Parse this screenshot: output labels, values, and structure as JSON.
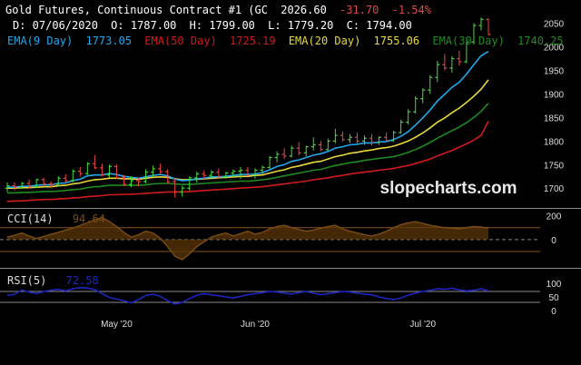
{
  "header": {
    "title": "Gold Futures, Continuous Contract #1 (GC",
    "last": "2026.60",
    "change": "-31.70",
    "change_pct": "-1.54%",
    "date_label": "D: 07/06/2020",
    "open_label": "O: 1787.00",
    "high_label": "H: 1799.00",
    "low_label": "L: 1779.20",
    "close_label": "C: 1794.00",
    "ema9_label": "EMA(9 Day)",
    "ema9_value": "1773.05",
    "ema50_label": "EMA(50 Day)",
    "ema50_value": "1725.19",
    "ema20_label": "EMA(20 Day)",
    "ema20_value": "1755.06",
    "ema30_label": "EMA(30 Day)",
    "ema30_value": "1740.25"
  },
  "watermark": "slopecharts.com",
  "cci_panel": {
    "label": "CCI(14)",
    "value": "94.64"
  },
  "rsi_panel": {
    "label": "RSI(5)",
    "value": "72.58"
  },
  "colors": {
    "background": "#000000",
    "title_text": "#ffffff",
    "change_text": "#e04848",
    "up_candle": "#44dd33",
    "down_candle": "#ee4444",
    "ema9": "#22a8ee",
    "ema20": "#e8d83c",
    "ema30": "#1f8a1f",
    "ema50": "#d11b1b",
    "cci_line": "#7a4c14",
    "cci_fill": "#5c3608",
    "rsi_line": "#1d28c8",
    "grid_line": "#8a8a8a",
    "axis_text": "#dddddd"
  },
  "chart_data": [
    {
      "type": "candlestick",
      "panel": "price",
      "title": "Gold Futures, Continuous Contract #1 (GC",
      "x_labels": [
        "May '20",
        "Jun '20",
        "Jul '20"
      ],
      "y_ticks": [
        1700,
        1750,
        1800,
        1850,
        1900,
        1950,
        2000,
        2050
      ],
      "ylim": [
        1660,
        2080
      ],
      "candles": [
        [
          1700,
          1712,
          1692,
          1705
        ],
        [
          1705,
          1712,
          1695,
          1702
        ],
        [
          1702,
          1713,
          1698,
          1710
        ],
        [
          1710,
          1718,
          1700,
          1703
        ],
        [
          1703,
          1720,
          1700,
          1718
        ],
        [
          1718,
          1722,
          1705,
          1709
        ],
        [
          1709,
          1715,
          1702,
          1708
        ],
        [
          1708,
          1725,
          1704,
          1721
        ],
        [
          1721,
          1730,
          1712,
          1716
        ],
        [
          1716,
          1740,
          1712,
          1736
        ],
        [
          1736,
          1745,
          1725,
          1731
        ],
        [
          1731,
          1755,
          1728,
          1752
        ],
        [
          1752,
          1770,
          1740,
          1743
        ],
        [
          1743,
          1752,
          1725,
          1728
        ],
        [
          1728,
          1750,
          1722,
          1746
        ],
        [
          1746,
          1750,
          1720,
          1722
        ],
        [
          1722,
          1728,
          1705,
          1708
        ],
        [
          1708,
          1725,
          1702,
          1716
        ],
        [
          1716,
          1722,
          1704,
          1714
        ],
        [
          1714,
          1740,
          1710,
          1734
        ],
        [
          1734,
          1748,
          1725,
          1741
        ],
        [
          1741,
          1752,
          1730,
          1735
        ],
        [
          1735,
          1740,
          1710,
          1714
        ],
        [
          1714,
          1720,
          1680,
          1692
        ],
        [
          1692,
          1705,
          1682,
          1700
        ],
        [
          1700,
          1725,
          1695,
          1722
        ],
        [
          1722,
          1735,
          1712,
          1730
        ],
        [
          1730,
          1738,
          1718,
          1727
        ],
        [
          1727,
          1738,
          1720,
          1734
        ],
        [
          1734,
          1742,
          1722,
          1725
        ],
        [
          1725,
          1735,
          1720,
          1732
        ],
        [
          1732,
          1740,
          1722,
          1736
        ],
        [
          1736,
          1745,
          1720,
          1738
        ],
        [
          1738,
          1745,
          1726,
          1728
        ],
        [
          1728,
          1742,
          1720,
          1738
        ],
        [
          1738,
          1748,
          1730,
          1744
        ],
        [
          1744,
          1768,
          1740,
          1765
        ],
        [
          1765,
          1778,
          1755,
          1772
        ],
        [
          1772,
          1785,
          1762,
          1768
        ],
        [
          1768,
          1790,
          1765,
          1785
        ],
        [
          1785,
          1798,
          1770,
          1775
        ],
        [
          1775,
          1790,
          1768,
          1788
        ],
        [
          1788,
          1808,
          1780,
          1792
        ],
        [
          1792,
          1800,
          1778,
          1782
        ],
        [
          1782,
          1805,
          1778,
          1800
        ],
        [
          1800,
          1826,
          1795,
          1812
        ],
        [
          1812,
          1820,
          1798,
          1803
        ],
        [
          1803,
          1815,
          1796,
          1808
        ],
        [
          1808,
          1818,
          1795,
          1800
        ],
        [
          1800,
          1812,
          1792,
          1806
        ],
        [
          1806,
          1815,
          1790,
          1797
        ],
        [
          1797,
          1810,
          1792,
          1808
        ],
        [
          1808,
          1818,
          1798,
          1801
        ],
        [
          1801,
          1822,
          1798,
          1818
        ],
        [
          1818,
          1845,
          1815,
          1840
        ],
        [
          1840,
          1868,
          1835,
          1862
        ],
        [
          1862,
          1895,
          1858,
          1890
        ],
        [
          1890,
          1912,
          1880,
          1908
        ],
        [
          1908,
          1940,
          1900,
          1935
        ],
        [
          1935,
          1970,
          1925,
          1962
        ],
        [
          1962,
          1985,
          1950,
          1955
        ],
        [
          1955,
          1980,
          1945,
          1975
        ],
        [
          1975,
          1992,
          1960,
          1968
        ],
        [
          1968,
          2020,
          1965,
          2010
        ],
        [
          2010,
          2050,
          2005,
          2045
        ],
        [
          2045,
          2062,
          2035,
          2058
        ],
        [
          2058,
          2060,
          2025,
          2026
        ]
      ],
      "ema9": [
        1702,
        1702,
        1704,
        1704,
        1706,
        1707,
        1707,
        1710,
        1711,
        1716,
        1719,
        1726,
        1728,
        1728,
        1731,
        1729,
        1725,
        1723,
        1721,
        1724,
        1727,
        1729,
        1726,
        1719,
        1716,
        1717,
        1720,
        1721,
        1724,
        1724,
        1725,
        1727,
        1729,
        1729,
        1730,
        1733,
        1739,
        1746,
        1750,
        1757,
        1760,
        1765,
        1770,
        1773,
        1778,
        1785,
        1788,
        1792,
        1793,
        1796,
        1796,
        1798,
        1799,
        1803,
        1810,
        1820,
        1834,
        1849,
        1866,
        1885,
        1899,
        1914,
        1925,
        1942,
        1962,
        1981,
        1990
      ],
      "ema20": [
        1700,
        1700,
        1701,
        1701,
        1702,
        1703,
        1703,
        1705,
        1706,
        1709,
        1711,
        1715,
        1718,
        1719,
        1721,
        1721,
        1720,
        1720,
        1719,
        1721,
        1723,
        1724,
        1723,
        1720,
        1718,
        1718,
        1719,
        1720,
        1721,
        1722,
        1723,
        1724,
        1725,
        1725,
        1727,
        1728,
        1732,
        1736,
        1739,
        1744,
        1747,
        1751,
        1755,
        1757,
        1762,
        1767,
        1770,
        1774,
        1776,
        1779,
        1781,
        1784,
        1786,
        1789,
        1794,
        1800,
        1808,
        1817,
        1828,
        1840,
        1849,
        1860,
        1870,
        1882,
        1895,
        1910,
        1930
      ],
      "ema30": [
        1690,
        1690,
        1691,
        1691,
        1692,
        1693,
        1693,
        1694,
        1695,
        1697,
        1698,
        1701,
        1703,
        1704,
        1706,
        1706,
        1706,
        1706,
        1706,
        1707,
        1709,
        1710,
        1710,
        1709,
        1708,
        1708,
        1709,
        1710,
        1711,
        1712,
        1713,
        1714,
        1715,
        1715,
        1716,
        1718,
        1720,
        1723,
        1726,
        1729,
        1732,
        1735,
        1738,
        1740,
        1744,
        1748,
        1751,
        1754,
        1756,
        1759,
        1761,
        1763,
        1765,
        1767,
        1771,
        1776,
        1782,
        1789,
        1797,
        1806,
        1814,
        1822,
        1830,
        1839,
        1850,
        1863,
        1880
      ],
      "ema50": [
        1672,
        1673,
        1673,
        1674,
        1675,
        1676,
        1676,
        1677,
        1678,
        1679,
        1680,
        1682,
        1683,
        1684,
        1686,
        1686,
        1687,
        1687,
        1688,
        1689,
        1690,
        1691,
        1692,
        1692,
        1692,
        1693,
        1694,
        1695,
        1696,
        1697,
        1698,
        1699,
        1700,
        1701,
        1702,
        1703,
        1705,
        1707,
        1709,
        1711,
        1713,
        1715,
        1718,
        1720,
        1722,
        1725,
        1727,
        1730,
        1732,
        1734,
        1736,
        1738,
        1740,
        1742,
        1745,
        1748,
        1752,
        1757,
        1762,
        1768,
        1774,
        1780,
        1787,
        1794,
        1802,
        1812,
        1842
      ]
    },
    {
      "type": "area",
      "panel": "cci",
      "title": "CCI(14)",
      "y_ticks": [
        200,
        0
      ],
      "ylim": [
        -230,
        250
      ],
      "reference_lines": [
        100,
        -100
      ],
      "values": [
        20,
        35,
        55,
        30,
        10,
        25,
        45,
        60,
        80,
        95,
        120,
        140,
        165,
        185,
        150,
        110,
        60,
        20,
        40,
        70,
        55,
        10,
        -60,
        -140,
        -170,
        -120,
        -60,
        -20,
        20,
        40,
        55,
        30,
        50,
        70,
        45,
        60,
        90,
        110,
        120,
        100,
        85,
        70,
        80,
        95,
        110,
        120,
        90,
        70,
        55,
        40,
        30,
        45,
        70,
        100,
        125,
        140,
        150,
        135,
        120,
        110,
        100,
        95,
        90,
        100,
        110,
        105,
        95
      ]
    },
    {
      "type": "line",
      "panel": "rsi",
      "title": "RSI(5)",
      "y_ticks": [
        100,
        50,
        0
      ],
      "ylim": [
        0,
        100
      ],
      "reference_lines": [
        70,
        30
      ],
      "values": [
        55,
        60,
        75,
        68,
        62,
        70,
        74,
        78,
        72,
        80,
        84,
        82,
        77,
        62,
        48,
        42,
        36,
        28,
        40,
        55,
        60,
        52,
        36,
        24,
        30,
        44,
        56,
        62,
        58,
        54,
        50,
        46,
        52,
        58,
        62,
        66,
        70,
        68,
        64,
        60,
        66,
        70,
        64,
        58,
        62,
        66,
        70,
        68,
        64,
        60,
        58,
        50,
        44,
        40,
        46,
        56,
        64,
        70,
        74,
        80,
        78,
        82,
        76,
        72,
        74,
        80,
        72
      ]
    }
  ]
}
